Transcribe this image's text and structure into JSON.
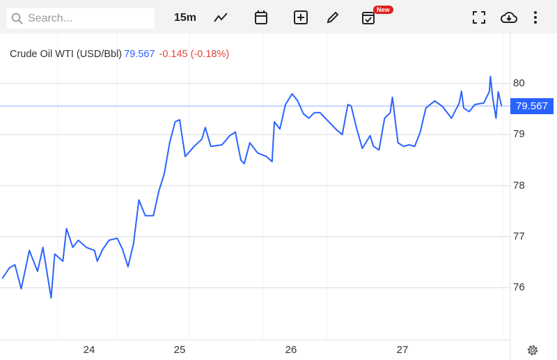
{
  "toolbar": {
    "search_placeholder": "Search...",
    "interval": "15m",
    "new_badge": "New",
    "icons": [
      "search-icon",
      "line-chart-icon",
      "calendar-icon",
      "add-icon",
      "pencil-icon",
      "calendar-check-icon",
      "fullscreen-icon",
      "cloud-download-icon",
      "more-vertical-icon",
      "gear-icon"
    ]
  },
  "legend": {
    "name": "Crude Oil WTI (USD/Bbl)",
    "price": "79.567",
    "change": "-0.145 (-0.18%)"
  },
  "colors": {
    "line": "#2962ff",
    "down": "#e5453b",
    "toolbar": "#f3f3f3"
  },
  "chart_data": {
    "type": "line",
    "title": "Crude Oil WTI (USD/Bbl)",
    "xlabel": "",
    "ylabel": "",
    "ylim": [
      75,
      80.4
    ],
    "y_ticks": [
      "80",
      "79",
      "78",
      "77",
      "76"
    ],
    "x_ticks": [
      "24",
      "25",
      "26",
      "27"
    ],
    "last_price_label": "79.567",
    "grid": true,
    "series": [
      {
        "name": "Crude Oil WTI",
        "points": [
          [
            23.04,
            76.18
          ],
          [
            23.12,
            76.39
          ],
          [
            23.18,
            76.45
          ],
          [
            23.25,
            75.98
          ],
          [
            23.34,
            76.73
          ],
          [
            23.43,
            76.32
          ],
          [
            23.49,
            76.79
          ],
          [
            23.58,
            75.8
          ],
          [
            23.62,
            76.66
          ],
          [
            23.71,
            76.52
          ],
          [
            23.75,
            77.16
          ],
          [
            23.82,
            76.79
          ],
          [
            23.88,
            76.93
          ],
          [
            23.97,
            76.79
          ],
          [
            24.06,
            76.73
          ],
          [
            24.09,
            76.52
          ],
          [
            24.15,
            76.75
          ],
          [
            24.22,
            76.93
          ],
          [
            24.31,
            76.97
          ],
          [
            24.37,
            76.75
          ],
          [
            24.43,
            76.41
          ],
          [
            24.49,
            76.86
          ],
          [
            24.55,
            77.72
          ],
          [
            24.62,
            77.41
          ],
          [
            24.71,
            77.41
          ],
          [
            24.77,
            77.89
          ],
          [
            24.83,
            78.23
          ],
          [
            24.89,
            78.84
          ],
          [
            24.95,
            79.25
          ],
          [
            25.0,
            79.29
          ],
          [
            25.05,
            78.57
          ],
          [
            25.13,
            78.77
          ],
          [
            25.2,
            78.91
          ],
          [
            25.23,
            79.14
          ],
          [
            25.28,
            78.77
          ],
          [
            25.38,
            78.8
          ],
          [
            25.45,
            78.98
          ],
          [
            25.5,
            79.05
          ],
          [
            25.55,
            78.5
          ],
          [
            25.58,
            78.43
          ],
          [
            25.63,
            78.84
          ],
          [
            25.7,
            78.64
          ],
          [
            25.78,
            78.57
          ],
          [
            25.83,
            78.47
          ],
          [
            25.85,
            79.25
          ],
          [
            25.9,
            79.11
          ],
          [
            25.95,
            79.59
          ],
          [
            26.01,
            79.8
          ],
          [
            26.06,
            79.66
          ],
          [
            26.11,
            79.41
          ],
          [
            26.16,
            79.32
          ],
          [
            26.21,
            79.43
          ],
          [
            26.26,
            79.43
          ],
          [
            26.34,
            79.25
          ],
          [
            26.41,
            79.09
          ],
          [
            26.46,
            79.0
          ],
          [
            26.51,
            79.59
          ],
          [
            26.54,
            79.56
          ],
          [
            26.59,
            79.11
          ],
          [
            26.64,
            78.73
          ],
          [
            26.71,
            78.98
          ],
          [
            26.74,
            78.77
          ],
          [
            26.79,
            78.7
          ],
          [
            26.84,
            79.32
          ],
          [
            26.89,
            79.43
          ],
          [
            26.91,
            79.73
          ],
          [
            26.96,
            78.84
          ],
          [
            27.01,
            78.77
          ],
          [
            27.06,
            78.8
          ],
          [
            27.11,
            78.77
          ],
          [
            27.16,
            79.05
          ],
          [
            27.21,
            79.52
          ],
          [
            27.29,
            79.66
          ],
          [
            27.36,
            79.55
          ],
          [
            27.44,
            79.32
          ],
          [
            27.51,
            79.62
          ],
          [
            27.53,
            79.85
          ],
          [
            27.55,
            79.52
          ],
          [
            27.6,
            79.45
          ],
          [
            27.65,
            79.59
          ],
          [
            27.73,
            79.62
          ],
          [
            27.78,
            79.84
          ],
          [
            27.79,
            80.14
          ],
          [
            27.81,
            79.73
          ],
          [
            27.84,
            79.32
          ],
          [
            27.86,
            79.84
          ],
          [
            27.89,
            79.56
          ]
        ]
      }
    ]
  }
}
